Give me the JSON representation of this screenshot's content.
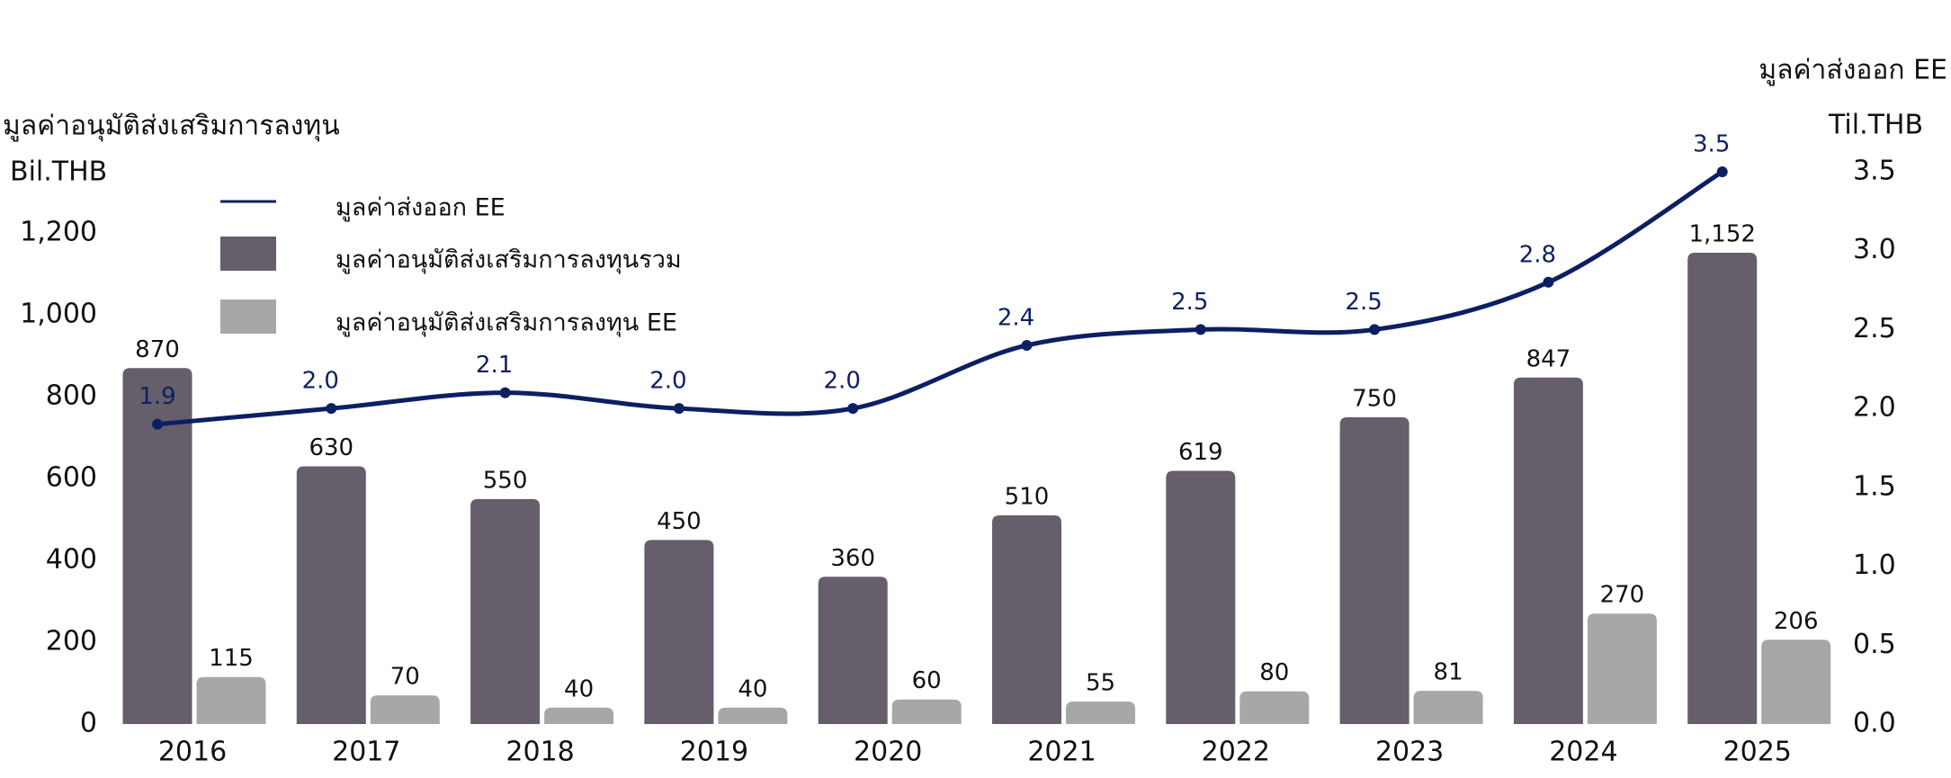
{
  "chart_data": {
    "type": "bar",
    "y_axis_title": "มูลค่าอนุมัติส่งเสริมการลงทุน",
    "y_axis_unit": "Bil.THB",
    "y2_axis_title": "มูลค่าส่งออก EE",
    "y2_axis_unit": "Til.THB",
    "categories": [
      "2016",
      "2017",
      "2018",
      "2019",
      "2020",
      "2021",
      "2022",
      "2023",
      "2024",
      "2025"
    ],
    "series": [
      {
        "name": "มูลค่าส่งออก EE",
        "type": "line",
        "axis": "y2",
        "color": "#0d1f63",
        "values": [
          1.9,
          2.0,
          2.1,
          2.0,
          2.0,
          2.4,
          2.5,
          2.5,
          2.8,
          3.5
        ],
        "value_labels": [
          "1.9",
          "2.0",
          "2.1",
          "2.0",
          "2.0",
          "2.4",
          "2.5",
          "2.5",
          "2.8",
          "3.5"
        ]
      },
      {
        "name": "มูลค่าอนุมัติส่งเสริมการลงทุนรวม",
        "type": "bar",
        "color": "#665e6b",
        "values": [
          870,
          630,
          550,
          450,
          360,
          510,
          619,
          750,
          847,
          1152
        ],
        "value_labels": [
          "870",
          "630",
          "550",
          "450",
          "360",
          "510",
          "619",
          "750",
          "847",
          "1,152"
        ]
      },
      {
        "name": "มูลค่าอนุมัติส่งเสริมการลงทุน EE",
        "type": "bar",
        "color": "#a7a7aa",
        "values": [
          115,
          70,
          40,
          40,
          60,
          55,
          80,
          81,
          270,
          206
        ]
      }
    ],
    "ylim": [
      0,
      1350
    ],
    "yticks": [
      0,
      200,
      400,
      600,
      800,
      {
        "value": 1000,
        "label": "1,000"
      },
      {
        "value": 1200,
        "label": "1,200"
      }
    ],
    "y2lim": [
      0,
      3.5
    ],
    "y2ticks": [
      {
        "value": 0,
        "label": "0.0"
      },
      0.5,
      {
        "value": 1,
        "label": "1.0"
      },
      1.5,
      {
        "value": 2,
        "label": "2.0"
      },
      2.5,
      {
        "value": 3,
        "label": "3.0"
      },
      3.5
    ],
    "grid": false,
    "legend": "upper left"
  }
}
